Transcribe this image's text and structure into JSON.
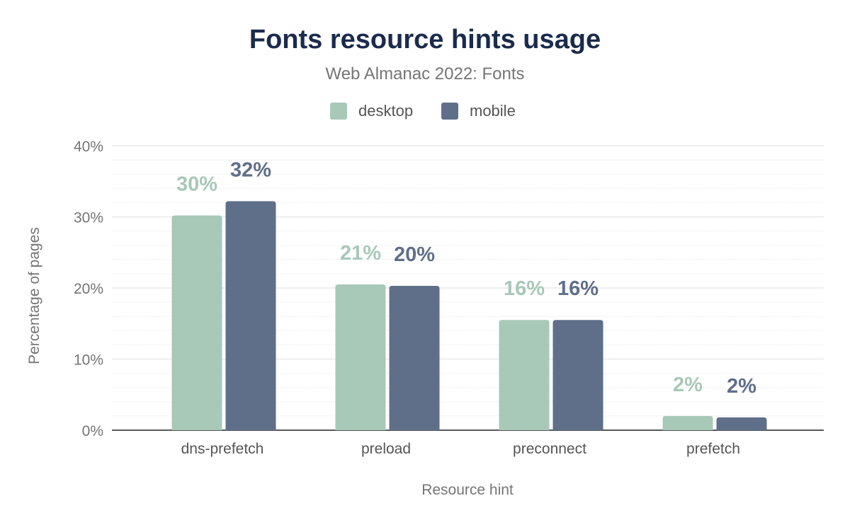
{
  "chart_data": {
    "type": "bar",
    "title": "Fonts resource hints usage",
    "subtitle": "Web Almanac 2022: Fonts",
    "xlabel": "Resource hint",
    "ylabel": "Percentage of pages",
    "categories": [
      "dns-prefetch",
      "preload",
      "preconnect",
      "prefetch"
    ],
    "series": [
      {
        "name": "desktop",
        "color": "#a8c8b8",
        "values": [
          30.2,
          20.5,
          15.5,
          2.0
        ],
        "labels": [
          "30%",
          "21%",
          "16%",
          "2%"
        ]
      },
      {
        "name": "mobile",
        "color": "#5f6f8a",
        "values": [
          32.2,
          20.3,
          15.5,
          1.8
        ],
        "labels": [
          "32%",
          "20%",
          "16%",
          "2%"
        ]
      }
    ],
    "ylim": [
      0,
      40
    ],
    "yticks": [
      0,
      10,
      20,
      30,
      40
    ],
    "ytick_labels": [
      "0%",
      "10%",
      "20%",
      "30%",
      "40%"
    ],
    "grid": true,
    "legend": "top-center"
  }
}
